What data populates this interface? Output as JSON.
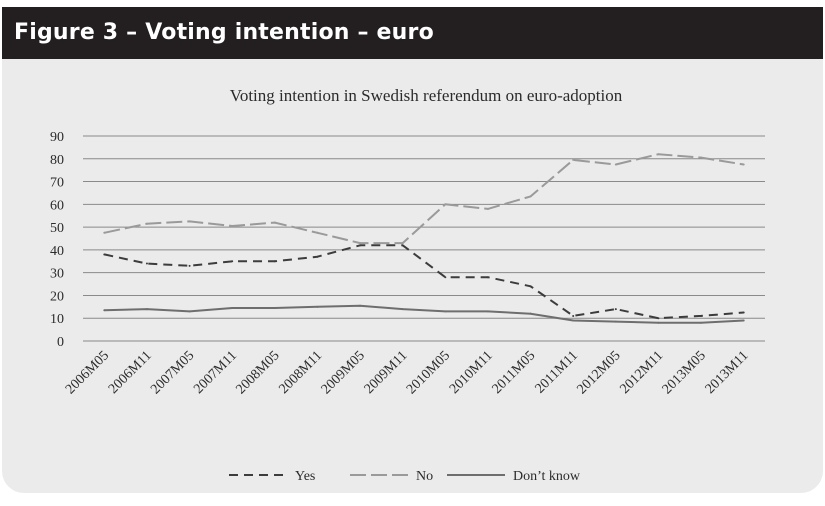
{
  "header": {
    "title": "Figure 3 – Voting intention – euro"
  },
  "chart_data": {
    "type": "line",
    "title": "Voting intention in Swedish referendum on euro-adoption",
    "xlabel": "",
    "ylabel": "",
    "ylim": [
      0,
      90
    ],
    "yticks": [
      0,
      10,
      20,
      30,
      40,
      50,
      60,
      70,
      80,
      90
    ],
    "grid": true,
    "legend_position": "bottom",
    "x": [
      "2006M05",
      "2006M11",
      "2007M05",
      "2007M11",
      "2008M05",
      "2008M11",
      "2009M05",
      "2009M11",
      "2010M05",
      "2010M11",
      "2011M05",
      "2011M11",
      "2012M05",
      "2012M11",
      "2013M05",
      "2013M11"
    ],
    "series": [
      {
        "name": "Yes",
        "color": "#3c3c3c",
        "style": "dashed",
        "values": [
          38,
          34,
          33,
          35,
          35,
          37,
          42,
          42,
          28,
          28,
          24,
          11,
          14,
          10,
          11,
          12.5
        ]
      },
      {
        "name": "No",
        "color": "#9a9a9a",
        "style": "dashdot",
        "values": [
          47.5,
          51.5,
          52.5,
          50.5,
          52,
          47.5,
          43,
          43,
          60,
          58,
          63.5,
          79.5,
          77.5,
          82,
          80.5,
          77.5
        ]
      },
      {
        "name": "Don’t know",
        "color": "#6e6e6e",
        "style": "solid",
        "values": [
          13.5,
          14,
          13,
          14.5,
          14.5,
          15,
          15.5,
          14,
          13,
          13,
          12,
          9,
          8.5,
          8,
          8,
          9
        ]
      }
    ]
  }
}
